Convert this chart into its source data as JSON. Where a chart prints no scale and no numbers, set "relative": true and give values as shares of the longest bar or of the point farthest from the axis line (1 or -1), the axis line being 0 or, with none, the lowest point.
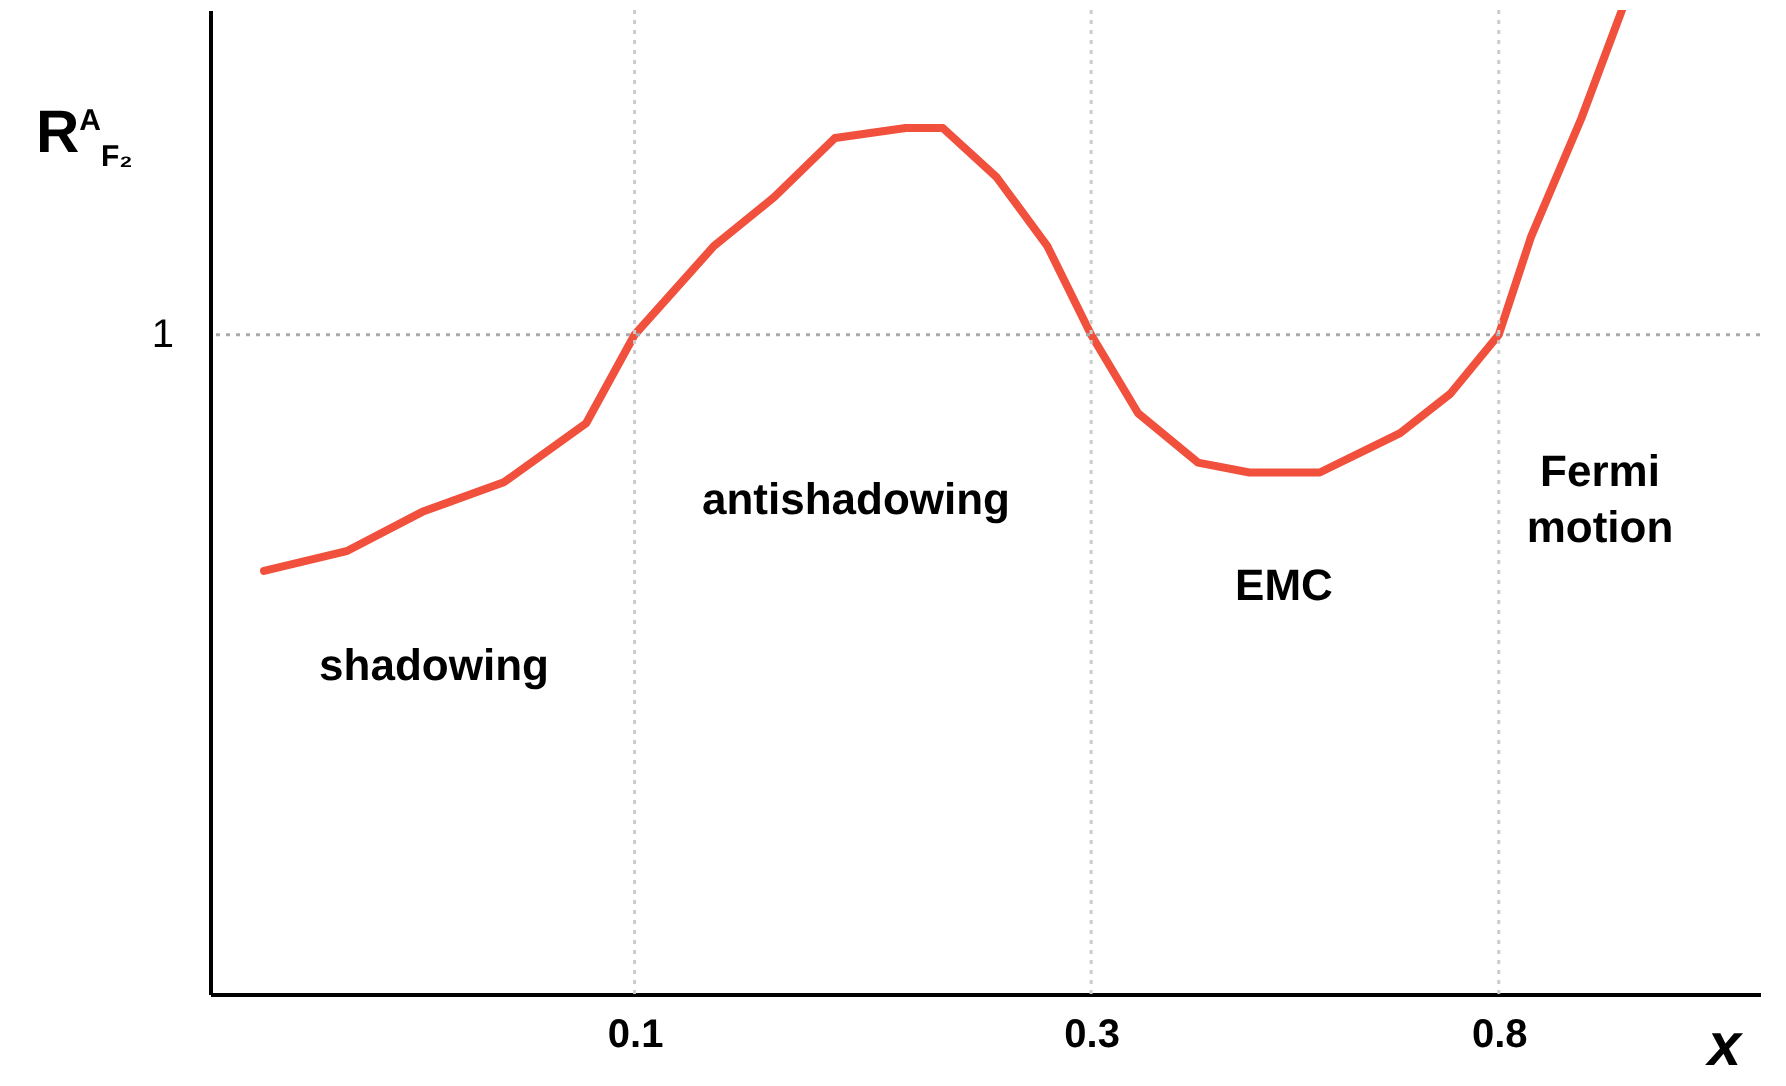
{
  "chart_data": {
    "type": "line",
    "xlabel": "x",
    "ylabel": "R$^{A}$$_{F₂}$",
    "relative": true,
    "x": [
      0.041,
      0.05,
      0.06,
      0.073,
      0.089,
      0.1,
      0.121,
      0.14,
      0.162,
      0.192,
      0.21,
      0.239,
      0.27,
      0.3,
      0.336,
      0.388,
      0.439,
      0.52,
      0.631,
      0.712,
      0.8,
      0.865,
      0.976,
      1.076
    ],
    "series": [
      {
        "color": "#f0503c",
        "values": [
          0.43,
          0.45,
          0.49,
          0.52,
          0.58,
          0.67,
          0.76,
          0.81,
          0.87,
          0.88,
          0.88,
          0.83,
          0.76,
          0.67,
          0.59,
          0.54,
          0.53,
          0.53,
          0.57,
          0.61,
          0.67,
          0.77,
          0.89,
          1.0
        ]
      }
    ],
    "log": "x",
    "xlim": [
      0.036,
      1.5
    ],
    "xticks": [
      0.1,
      0.3,
      0.8
    ],
    "ref_lines": [
      {
        "axis": "y",
        "value": 0.67,
        "label": "1",
        "color": "#aaaaaa",
        "line_style": "dotted"
      },
      {
        "axis": "x",
        "value": 0.1,
        "color": "#cccccc",
        "line_style": "dotted"
      },
      {
        "axis": "x",
        "value": 0.3,
        "color": "#cccccc",
        "line_style": "dotted"
      },
      {
        "axis": "x",
        "value": 0.8,
        "color": "#cccccc",
        "line_style": "dotted"
      }
    ],
    "annotations": [
      "shadowing",
      "antishadowing",
      "EMC",
      "Fermi\nmotion"
    ]
  }
}
